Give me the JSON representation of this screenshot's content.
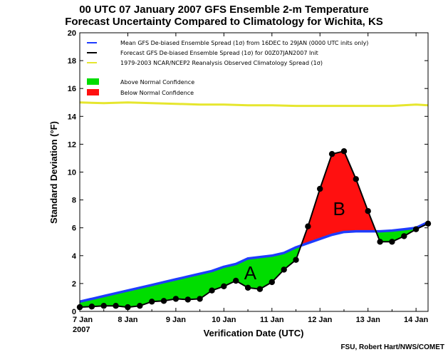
{
  "chart_data": {
    "type": "line",
    "title_line1": "00 UTC 07 January 2007 GFS Ensemble 2-m Temperature",
    "title_line2": "Forecast Uncertainty Compared to Climatology for Wichita, KS",
    "xlabel": "Verification Date (UTC)",
    "ylabel": "Standard Deviation (°F)",
    "xlim": [
      0,
      7.25
    ],
    "ylim": [
      0,
      20
    ],
    "yticks": [
      0,
      2,
      4,
      6,
      8,
      10,
      12,
      14,
      16,
      18,
      20
    ],
    "xticks": [
      {
        "value": 0,
        "label": "7 Jan",
        "sublabel": "2007"
      },
      {
        "value": 1,
        "label": "8 Jan"
      },
      {
        "value": 2,
        "label": "9 Jan"
      },
      {
        "value": 3,
        "label": "10 Jan"
      },
      {
        "value": 4,
        "label": "11 Jan"
      },
      {
        "value": 5,
        "label": "12 Jan"
      },
      {
        "value": 6,
        "label": "13 Jan"
      },
      {
        "value": 7,
        "label": "14 Jan"
      }
    ],
    "series": [
      {
        "key": "mean",
        "name": "Mean GFS De-biased Ensemble Spread (1σ) from 16DEC to 29JAN (0000 UTC inits only)",
        "color": "#1e3cff",
        "x": [
          0,
          0.25,
          0.5,
          0.75,
          1,
          1.25,
          1.5,
          1.75,
          2,
          2.25,
          2.5,
          2.75,
          3,
          3.25,
          3.5,
          3.75,
          4,
          4.25,
          4.5,
          4.75,
          5,
          5.25,
          5.5,
          5.75,
          6,
          6.25,
          6.5,
          6.75,
          7,
          7.25
        ],
        "y": [
          0.7,
          0.9,
          1.1,
          1.3,
          1.5,
          1.7,
          1.9,
          2.1,
          2.3,
          2.5,
          2.7,
          2.9,
          3.2,
          3.4,
          3.8,
          3.9,
          4.0,
          4.2,
          4.6,
          4.9,
          5.2,
          5.5,
          5.7,
          5.75,
          5.75,
          5.75,
          5.8,
          5.9,
          6.0,
          6.4
        ]
      },
      {
        "key": "forecast",
        "name": "Forecast GFS De-biased Ensemble Spread (1σ) for 00Z07JAN2007 Init",
        "color": "#000000",
        "x": [
          0,
          0.25,
          0.5,
          0.75,
          1,
          1.25,
          1.5,
          1.75,
          2,
          2.25,
          2.5,
          2.75,
          3,
          3.25,
          3.5,
          3.75,
          4,
          4.25,
          4.5,
          4.75,
          5,
          5.25,
          5.5,
          5.75,
          6,
          6.25,
          6.5,
          6.75,
          7,
          7.25
        ],
        "y": [
          0.3,
          0.35,
          0.4,
          0.4,
          0.3,
          0.4,
          0.7,
          0.75,
          0.9,
          0.85,
          0.9,
          1.5,
          1.8,
          2.2,
          1.7,
          1.6,
          2.1,
          3.0,
          3.7,
          6.1,
          8.8,
          11.3,
          11.5,
          9.5,
          7.2,
          5.0,
          5.0,
          5.4,
          5.9,
          6.3
        ]
      },
      {
        "key": "climo",
        "name": "1979-2003 NCAR/NCEP2 Reanalysis Observed Climatology Spread (1σ)",
        "color": "#e6e62e",
        "x": [
          0,
          0.5,
          1,
          1.5,
          2,
          2.5,
          3,
          3.5,
          4,
          4.5,
          5,
          5.5,
          6,
          6.5,
          7,
          7.25
        ],
        "y": [
          15.0,
          14.95,
          15.0,
          14.95,
          14.9,
          14.85,
          14.85,
          14.8,
          14.8,
          14.75,
          14.75,
          14.75,
          14.75,
          14.75,
          14.85,
          14.8
        ]
      }
    ],
    "fill_legend": [
      {
        "name": "Above Normal Confidence",
        "color": "#00dd00"
      },
      {
        "name": "Below Normal Confidence",
        "color": "#ff1010"
      }
    ],
    "annotations": [
      {
        "text": "A",
        "x": 3.55,
        "y": 2.3
      },
      {
        "text": "B",
        "x": 5.4,
        "y": 6.9
      }
    ],
    "grid": false,
    "legend_position": "top-left"
  },
  "credit": "FSU, Robert Hart/NWS/COMET"
}
